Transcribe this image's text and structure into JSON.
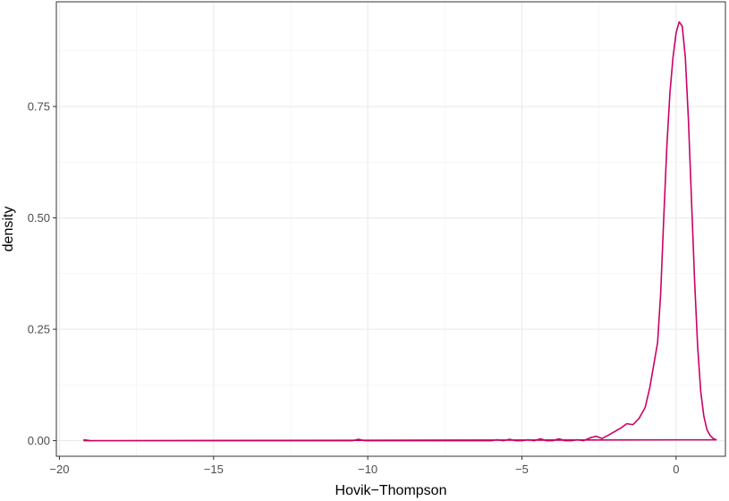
{
  "chart_data": {
    "type": "area",
    "xlabel": "Hovik−Thompson",
    "ylabel": "density",
    "xlim": [
      -20.1,
      1.6
    ],
    "ylim": [
      -0.035,
      0.985
    ],
    "x_ticks": [
      -20,
      -15,
      -10,
      -5,
      0
    ],
    "x_tick_labels": [
      "−20",
      "−15",
      "−10",
      "−5",
      "0"
    ],
    "y_ticks": [
      0.0,
      0.25,
      0.5,
      0.75
    ],
    "y_tick_labels": [
      "0.00",
      "0.25",
      "0.50",
      "0.75"
    ],
    "grid": true,
    "legend": "none",
    "series": [
      {
        "color": "#cc0066",
        "x": [
          -19.2,
          -19.0,
          -18.8,
          -15,
          -10.5,
          -10.3,
          -10.1,
          -8,
          -6.0,
          -5.8,
          -5.6,
          -5.4,
          -5.2,
          -5.0,
          -4.8,
          -4.6,
          -4.4,
          -4.2,
          -4.0,
          -3.8,
          -3.6,
          -3.4,
          -3.2,
          -3.0,
          -2.8,
          -2.6,
          -2.4,
          -2.2,
          -2.0,
          -1.8,
          -1.6,
          -1.4,
          -1.2,
          -1.0,
          -0.85,
          -0.7,
          -0.6,
          -0.5,
          -0.4,
          -0.3,
          -0.2,
          -0.1,
          0.0,
          0.1,
          0.2,
          0.3,
          0.4,
          0.5,
          0.6,
          0.7,
          0.8,
          0.9,
          1.0,
          1.1,
          1.2,
          1.3
        ],
        "y": [
          0.002,
          0.0,
          0.0,
          0.0,
          0.0,
          0.003,
          0.0,
          0.0,
          0.0,
          0.002,
          0.0,
          0.003,
          0.0,
          0.0,
          0.002,
          0.0,
          0.004,
          0.0,
          0.0,
          0.004,
          0.0,
          0.0,
          0.002,
          0.0,
          0.006,
          0.01,
          0.005,
          0.012,
          0.02,
          0.028,
          0.038,
          0.036,
          0.05,
          0.075,
          0.12,
          0.18,
          0.22,
          0.33,
          0.5,
          0.66,
          0.78,
          0.86,
          0.915,
          0.94,
          0.93,
          0.86,
          0.72,
          0.54,
          0.36,
          0.21,
          0.11,
          0.055,
          0.025,
          0.012,
          0.005,
          0.002
        ]
      }
    ]
  }
}
